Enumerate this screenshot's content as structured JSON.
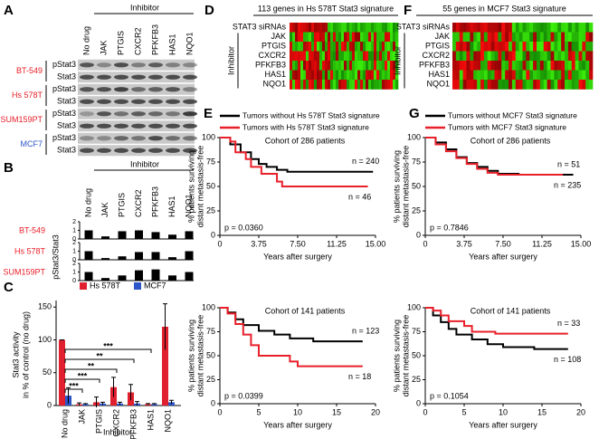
{
  "panel_a": {
    "label": "A",
    "header": "Inhibitor",
    "columns": [
      "No drug",
      "JAK",
      "PTGIS",
      "CXCR2",
      "PFKFB3",
      "HAS1",
      "NQO1"
    ],
    "cell_lines": [
      {
        "name": "BT-549",
        "color": "#e8202a",
        "rows": [
          "pStat3",
          "Stat3"
        ]
      },
      {
        "name": "Hs 578T",
        "color": "#e8202a",
        "rows": [
          "pStat3",
          "Stat3"
        ]
      },
      {
        "name": "SUM159PT",
        "color": "#e8202a",
        "rows": [
          "pStat3",
          "Stat3"
        ]
      },
      {
        "name": "MCF7",
        "color": "#2b55c8",
        "rows": [
          "pStat3",
          "Stat3"
        ]
      }
    ]
  },
  "panel_b": {
    "label": "B",
    "header": "Inhibitor",
    "columns": [
      "No drug",
      "JAK",
      "PTGIS",
      "CXCR2",
      "PFKFB3",
      "HAS1",
      "NQO1"
    ],
    "y_label": "pStat3/Stat3",
    "ylim": [
      0,
      2
    ],
    "yticks": [
      0,
      1,
      2
    ],
    "bar_color": "#000000",
    "rows": [
      {
        "name": "BT-549",
        "color": "#e8202a",
        "values": [
          1,
          0.3,
          0.9,
          1,
          0.8,
          0.5,
          0.9
        ]
      },
      {
        "name": "Hs 578T",
        "color": "#e8202a",
        "values": [
          1,
          0.2,
          0.4,
          0.9,
          0.9,
          0.3,
          1
        ]
      },
      {
        "name": "SUM159PT",
        "color": "#e8202a",
        "values": [
          1,
          0.3,
          0.6,
          1.2,
          1.3,
          0.6,
          1
        ]
      }
    ]
  },
  "panel_c": {
    "label": "C",
    "type": "bar",
    "y_label": [
      "Stat3 activity",
      "in % of control (no drug)"
    ],
    "x_label": "Inhibitor",
    "categories": [
      "No drug",
      "JAK",
      "PTGIS",
      "CXCR2",
      "PFKFB3",
      "HAS1",
      "NQO1"
    ],
    "ylim": [
      0,
      160
    ],
    "yticks": [
      0,
      50,
      100,
      150
    ],
    "series": [
      {
        "name": "Hs 578T",
        "color": "#e0202e",
        "values": [
          100,
          2,
          5,
          28,
          20,
          2,
          120
        ],
        "errors": [
          0,
          2,
          8,
          15,
          12,
          1,
          35
        ]
      },
      {
        "name": "MCF7",
        "color": "#2b55c8",
        "values": [
          15,
          2,
          3,
          3,
          3,
          2,
          5
        ],
        "errors": [
          12,
          1,
          2,
          2,
          3,
          1,
          3
        ]
      }
    ],
    "significance": [
      "***",
      "***",
      "**",
      "**",
      "***"
    ]
  },
  "panel_d": {
    "label": "D",
    "title": "113 genes in Hs 578T Stat3 signature",
    "row_labels": [
      "STAT3 siRNAs",
      "JAK",
      "PTGIS",
      "CXCR2",
      "PFKFB3",
      "HAS1",
      "NQO1"
    ],
    "row_group_label": "Inhibitor"
  },
  "panel_f": {
    "label": "F",
    "title": "55 genes in MCF7 Stat3 signature",
    "row_labels": [
      "STAT3 siRNAs",
      "JAK",
      "PTGIS",
      "CXCR2",
      "PFKFB3",
      "HAS1",
      "NQO1"
    ],
    "row_group_label": "Inhibitor"
  },
  "panel_e": {
    "label": "E",
    "legend": [
      {
        "name": "Tumors without Hs 578T Stat3 signature",
        "color": "#000000"
      },
      {
        "name": "Tumors with Hs 578T Stat3 signature",
        "color": "#e8202a"
      }
    ],
    "y_label": [
      "% patients surviving",
      "distant metastasis-free"
    ],
    "x_label": "Years after surgery",
    "plots": [
      {
        "title": "Cohort of 286 patients",
        "xlim": [
          0,
          15
        ],
        "xticks": [
          0,
          3.75,
          {
            "value": 7.5,
            "label": "7.50"
          },
          11.25,
          {
            "value": 15,
            "label": "15.00"
          }
        ],
        "ylim": [
          0,
          100
        ],
        "yticks": [
          0,
          25,
          50,
          75,
          100
        ],
        "series": [
          {
            "x": [
              0,
              1,
              2,
              3,
              3.75,
              4.5,
              5.5,
              6.5,
              8,
              10,
              12,
              14.5
            ],
            "y": [
              100,
              93,
              85,
              78,
              73,
              70,
              67,
              65,
              65,
              65,
              65,
              65
            ]
          },
          {
            "x": [
              0,
              1,
              1.5,
              2.5,
              3,
              4,
              5.5,
              6,
              8,
              11,
              14
            ],
            "y": [
              100,
              96,
              85,
              78,
              70,
              63,
              55,
              50,
              50,
              50,
              50
            ]
          }
        ],
        "annotations": [
          "n = 240",
          "n = 46"
        ],
        "p_value": "p = 0.0360"
      },
      {
        "title": "Cohort of 141 patients",
        "xlim": [
          0,
          20
        ],
        "xticks": [
          0,
          5,
          10,
          15,
          20
        ],
        "ylim": [
          0,
          100
        ],
        "yticks": [
          0,
          25,
          50,
          75,
          100
        ],
        "series": [
          {
            "x": [
              0,
              1,
              2,
              3,
              5,
              7,
              9,
              12,
              15,
              18
            ],
            "y": [
              100,
              95,
              88,
              82,
              76,
              72,
              68,
              65,
              65,
              65
            ]
          },
          {
            "x": [
              0,
              1,
              2,
              3,
              4,
              5,
              9,
              10,
              15,
              18
            ],
            "y": [
              100,
              94,
              83,
              72,
              61,
              50,
              44,
              39,
              39,
              39
            ]
          }
        ],
        "annotations": [
          "n = 123",
          "n = 18"
        ],
        "p_value": "p = 0.0399"
      }
    ]
  },
  "panel_g": {
    "label": "G",
    "legend": [
      {
        "name": "Tumors without MCF7 Stat3 signature",
        "color": "#000000"
      },
      {
        "name": "Tumors with MCF7 Stat3 signature",
        "color": "#e8202a"
      }
    ],
    "y_label": [
      "% patients surviving",
      "distant metastasis-free"
    ],
    "x_label": "Years after surgery",
    "plots": [
      {
        "title": "Cohort of 286 patients",
        "xlim": [
          0,
          15
        ],
        "xticks": [
          0,
          3.75,
          {
            "value": 7.5,
            "label": "7.50"
          },
          11.25,
          {
            "value": 15,
            "label": "15.00"
          }
        ],
        "ylim": [
          0,
          100
        ],
        "yticks": [
          0,
          25,
          50,
          75,
          100
        ],
        "series": [
          {
            "x": [
              0,
              1,
              2,
              3,
              4,
              5,
              6,
              7,
              9,
              12,
              14
            ],
            "y": [
              100,
              95,
              88,
              80,
              74,
              70,
              66,
              63,
              62,
              62,
              62
            ]
          },
          {
            "x": [
              0,
              1,
              2,
              3,
              4,
              5,
              6,
              7,
              10,
              13
            ],
            "y": [
              100,
              93,
              86,
              79,
              73,
              68,
              64,
              62,
              62,
              62
            ]
          }
        ],
        "annotations": [
          "n = 51",
          "n = 235"
        ],
        "p_value": "p = 0.7846"
      },
      {
        "title": "Cohort of 141 patients",
        "xlim": [
          0,
          20
        ],
        "xticks": [
          0,
          5,
          10,
          15,
          20
        ],
        "ylim": [
          0,
          100
        ],
        "yticks": [
          0,
          25,
          50,
          75,
          100
        ],
        "series": [
          {
            "x": [
              0,
              1,
              2,
              3,
              4,
              6,
              8,
              10,
              14,
              18
            ],
            "y": [
              100,
              92,
              85,
              78,
              72,
              67,
              62,
              59,
              57,
              57
            ]
          },
          {
            "x": [
              0,
              1,
              2,
              3,
              5,
              6,
              9,
              10,
              15,
              18
            ],
            "y": [
              100,
              97,
              92,
              86,
              81,
              75,
              73,
              73,
              73,
              73
            ]
          }
        ],
        "annotations": [
          "n = 33",
          "n = 108"
        ],
        "p_value": "p = 0.1054"
      }
    ]
  }
}
